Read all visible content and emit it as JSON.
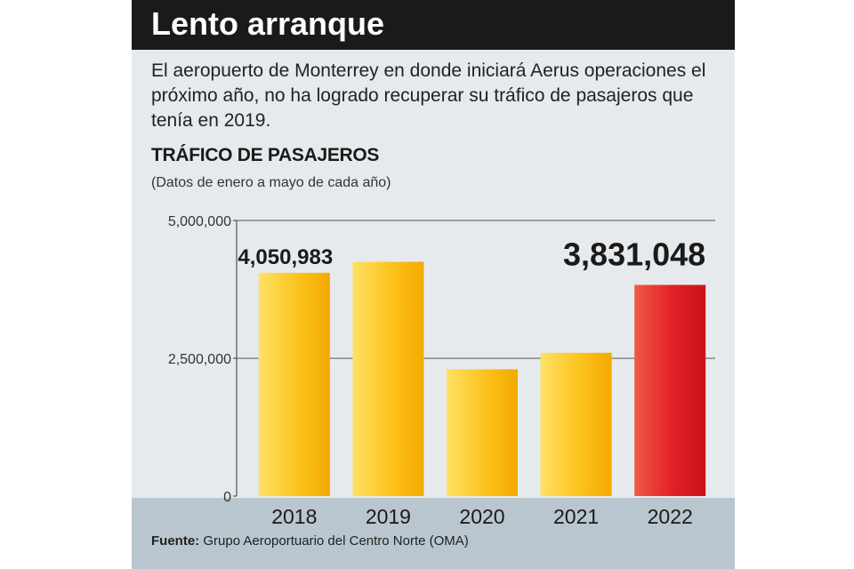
{
  "header": {
    "title": "Lento arranque"
  },
  "intro": "El aeropuerto de Monterrey en donde iniciará Aerus operaciones el próximo año, no ha logrado recuperar su tráfico de pasajeros que tenía en 2019.",
  "source": {
    "label": "Fuente:",
    "text": "Grupo Aeroportuario del Centro Norte (OMA)"
  },
  "colors": {
    "bar": "#fcc31c",
    "highlight": "#e21f26",
    "header_bg": "#1a1a1a",
    "panel_bg": "#e7eaec",
    "footer_band": "#b9c6cf"
  },
  "chart_data": {
    "type": "bar",
    "title": "TRÁFICO DE PASAJEROS",
    "subtitle": "(Datos de enero a mayo de cada año)",
    "categories": [
      "2018",
      "2019",
      "2020",
      "2021",
      "2022"
    ],
    "values": [
      4050983,
      4250000,
      2300000,
      2600000,
      3831048
    ],
    "ylim": [
      0,
      5000000
    ],
    "yticks": [
      0,
      2500000,
      5000000
    ],
    "ytick_labels": [
      "0",
      "2,500,000",
      "5,000,000"
    ],
    "data_labels": [
      {
        "index": 0,
        "text": "4,050,983"
      },
      {
        "index": 4,
        "text": "3,831,048"
      }
    ],
    "highlight_index": 4,
    "grid": true
  }
}
